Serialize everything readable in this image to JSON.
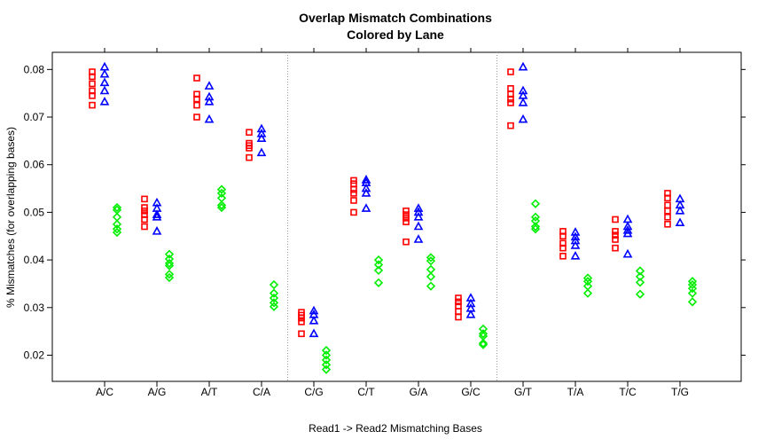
{
  "chart_data": {
    "type": "scatter",
    "title": "Overlap Mismatch Combinations",
    "subtitle": "Colored by Lane",
    "xlabel": "Read1 -> Read2 Mismatching Bases",
    "ylabel": "% Mismatches (for overlapping bases)",
    "categories": [
      "A/C",
      "A/G",
      "A/T",
      "C/A",
      "C/G",
      "C/T",
      "G/A",
      "G/C",
      "G/T",
      "T/A",
      "T/C",
      "T/G"
    ],
    "ylim": [
      0.0145,
      0.0836
    ],
    "yticks": [
      0.02,
      0.03,
      0.04,
      0.05,
      0.06,
      0.07,
      0.08
    ],
    "ytick_labels": [
      "0.02",
      "0.03",
      "0.04",
      "0.05",
      "0.06",
      "0.07",
      "0.08"
    ],
    "group_separators_after": [
      "C/A",
      "G/C"
    ],
    "grid": false,
    "series": [
      {
        "color": "#ff0000",
        "marker": "square",
        "values": [
          [
            0.0795,
            0.0785,
            0.077,
            0.0755,
            0.0745,
            0.0725
          ],
          [
            0.0528,
            0.051,
            0.0503,
            0.0495,
            0.0485,
            0.047
          ],
          [
            0.0782,
            0.0748,
            0.0738,
            0.0725,
            0.07
          ],
          [
            0.0668,
            0.0645,
            0.064,
            0.0635,
            0.0615
          ],
          [
            0.029,
            0.0284,
            0.0278,
            0.027,
            0.0245
          ],
          [
            0.0567,
            0.056,
            0.0548,
            0.054,
            0.0525,
            0.05
          ],
          [
            0.0503,
            0.0495,
            0.0488,
            0.048,
            0.0438
          ],
          [
            0.032,
            0.0312,
            0.0303,
            0.0292,
            0.028
          ],
          [
            0.0795,
            0.076,
            0.0748,
            0.0738,
            0.073,
            0.0682
          ],
          [
            0.046,
            0.045,
            0.0435,
            0.0425,
            0.0408
          ],
          [
            0.0485,
            0.046,
            0.0452,
            0.0443,
            0.0425
          ],
          [
            0.054,
            0.053,
            0.0515,
            0.0503,
            0.049,
            0.0475
          ]
        ]
      },
      {
        "color": "#0000ff",
        "marker": "triangle",
        "values": [
          [
            0.0805,
            0.079,
            0.0772,
            0.0755,
            0.0732
          ],
          [
            0.052,
            0.0508,
            0.0495,
            0.049,
            0.046
          ],
          [
            0.0765,
            0.0742,
            0.0732,
            0.0695
          ],
          [
            0.0675,
            0.0665,
            0.0655,
            0.0625
          ],
          [
            0.0293,
            0.0285,
            0.0272,
            0.0245
          ],
          [
            0.0568,
            0.0562,
            0.055,
            0.054,
            0.0508
          ],
          [
            0.0508,
            0.05,
            0.049,
            0.047,
            0.0443
          ],
          [
            0.032,
            0.0308,
            0.0298,
            0.0285
          ],
          [
            0.0805,
            0.0755,
            0.0745,
            0.073,
            0.0695
          ],
          [
            0.0458,
            0.0448,
            0.044,
            0.043,
            0.0408
          ],
          [
            0.0485,
            0.047,
            0.0462,
            0.0455,
            0.0412
          ],
          [
            0.0528,
            0.0515,
            0.0503,
            0.0478
          ]
        ]
      },
      {
        "color": "#00ee00",
        "marker": "diamond",
        "values": [
          [
            0.051,
            0.0505,
            0.049,
            0.0475,
            0.0465,
            0.0458
          ],
          [
            0.0412,
            0.0402,
            0.0393,
            0.0388,
            0.037,
            0.0363
          ],
          [
            0.0548,
            0.054,
            0.053,
            0.0515,
            0.051
          ],
          [
            0.0348,
            0.033,
            0.032,
            0.031,
            0.0302
          ],
          [
            0.021,
            0.02,
            0.019,
            0.018,
            0.017
          ],
          [
            0.04,
            0.039,
            0.0378,
            0.0352
          ],
          [
            0.0405,
            0.0398,
            0.038,
            0.0365,
            0.0345
          ],
          [
            0.0255,
            0.0245,
            0.024,
            0.0225,
            0.0222
          ],
          [
            0.0518,
            0.049,
            0.0482,
            0.047,
            0.0465
          ],
          [
            0.0362,
            0.0355,
            0.0345,
            0.033
          ],
          [
            0.0377,
            0.0365,
            0.0353,
            0.0328
          ],
          [
            0.0355,
            0.0348,
            0.034,
            0.033,
            0.0312
          ]
        ]
      }
    ]
  }
}
